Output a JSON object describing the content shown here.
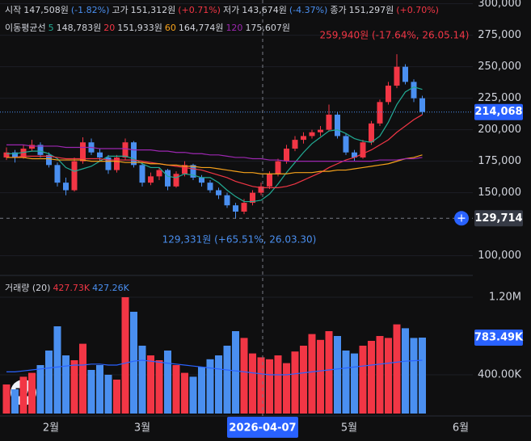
{
  "header": {
    "items": [
      {
        "label": "시작",
        "value": "147,508원",
        "pct": "(-1.82%)"
      },
      {
        "label": "고가",
        "value": "151,312원",
        "pct": "(+0.71%)"
      },
      {
        "label": "저가",
        "value": "143,674원",
        "pct": "(-4.37%)"
      },
      {
        "label": "종가",
        "value": "151,297원",
        "pct": "(+0.70%)"
      }
    ]
  },
  "ma_legend": {
    "label": "이동평균선",
    "items": [
      {
        "period": "5",
        "value": "148,783원",
        "color": "#22ab94"
      },
      {
        "period": "20",
        "value": "151,933원",
        "color": "#f23645"
      },
      {
        "period": "60",
        "value": "164,774원",
        "color": "#f7a21b"
      },
      {
        "period": "120",
        "value": "175,607원",
        "color": "#9c27b0"
      }
    ]
  },
  "x_axis": {
    "labels": [
      "2월",
      "3월",
      "5월",
      "6월"
    ],
    "crosshair_date": "2026-04-07"
  },
  "chart_data": [
    {
      "type": "candlestick",
      "up_color": "#f23645",
      "down_color": "#4a8ff0",
      "open": [
        178000,
        182000,
        178000,
        185000,
        188000,
        180000,
        172000,
        158000,
        152000,
        175000,
        190000,
        182000,
        178000,
        168000,
        178000,
        190000,
        172000,
        158000,
        163000,
        168000,
        155000,
        165000,
        172000,
        162000,
        158000,
        152000,
        148000,
        140000,
        135000,
        142000,
        150000,
        155000,
        165000,
        175000,
        185000,
        192000,
        195000,
        198000,
        200000,
        212000,
        195000,
        182000,
        178000,
        190000,
        205000,
        222000,
        235000,
        250000,
        238000,
        225000
      ],
      "high": [
        186000,
        184000,
        188000,
        192000,
        190000,
        182000,
        174000,
        162000,
        178000,
        194000,
        193000,
        185000,
        180000,
        180000,
        193000,
        191000,
        174000,
        166000,
        170000,
        169000,
        167000,
        175000,
        173000,
        164000,
        160000,
        154000,
        150000,
        142000,
        145000,
        152000,
        158000,
        167000,
        177000,
        188000,
        195000,
        198000,
        200000,
        203000,
        220000,
        214000,
        197000,
        184000,
        192000,
        207000,
        224000,
        238000,
        259940,
        252000,
        240000,
        227000
      ],
      "low": [
        176000,
        174000,
        177000,
        183000,
        178000,
        170000,
        155000,
        148000,
        151000,
        173000,
        180000,
        175000,
        165000,
        166000,
        176000,
        170000,
        155000,
        156000,
        160000,
        152000,
        154000,
        163000,
        160000,
        155000,
        150000,
        145000,
        138000,
        129331,
        133000,
        140000,
        148000,
        153000,
        163000,
        173000,
        183000,
        189000,
        193000,
        195000,
        199000,
        193000,
        180000,
        175000,
        177000,
        188000,
        203000,
        220000,
        233000,
        236000,
        222000,
        212000
      ],
      "close": [
        182000,
        178000,
        185000,
        188000,
        180000,
        172000,
        158000,
        152000,
        175000,
        190000,
        182000,
        178000,
        168000,
        178000,
        190000,
        172000,
        158000,
        163000,
        168000,
        155000,
        165000,
        172000,
        162000,
        158000,
        152000,
        148000,
        140000,
        135000,
        142000,
        150000,
        155000,
        165000,
        175000,
        185000,
        192000,
        195000,
        198000,
        200000,
        212000,
        195000,
        182000,
        178000,
        190000,
        205000,
        222000,
        235000,
        250000,
        238000,
        225000,
        214068
      ],
      "series": [
        {
          "name": "5",
          "color": "#22ab94",
          "values": [
            181000,
            181000,
            182000,
            183000,
            183000,
            181000,
            177000,
            170000,
            167000,
            169000,
            171000,
            175000,
            179000,
            179000,
            179000,
            177000,
            173000,
            170000,
            170000,
            163000,
            162000,
            165000,
            164000,
            162000,
            162000,
            158000,
            152000,
            147000,
            143000,
            143000,
            144000,
            149000,
            157000,
            166000,
            174000,
            182000,
            189000,
            194000,
            199000,
            200000,
            197000,
            193000,
            191000,
            190000,
            195000,
            206000,
            220000,
            230000,
            234000,
            232000
          ]
        },
        {
          "name": "20",
          "color": "#f23645",
          "values": [
            178000,
            178000,
            179000,
            179000,
            179000,
            179000,
            178000,
            177000,
            177000,
            177000,
            177000,
            177000,
            176000,
            176000,
            176000,
            176000,
            175000,
            174000,
            173000,
            172000,
            171000,
            170000,
            169000,
            168000,
            166000,
            164000,
            162000,
            159000,
            157000,
            155000,
            154000,
            154000,
            154000,
            155000,
            157000,
            160000,
            163000,
            166000,
            170000,
            173000,
            176000,
            178000,
            181000,
            184000,
            188000,
            192000,
            198000,
            203000,
            208000,
            212000
          ]
        },
        {
          "name": "60",
          "color": "#f7a21b",
          "values": [
            178000,
            178000,
            178000,
            177000,
            177000,
            177000,
            176000,
            176000,
            176000,
            176000,
            175000,
            175000,
            175000,
            175000,
            174000,
            174000,
            174000,
            173000,
            173000,
            172000,
            172000,
            171000,
            171000,
            170000,
            170000,
            169000,
            168000,
            167000,
            166000,
            166000,
            165000,
            165000,
            165000,
            165000,
            166000,
            166000,
            166000,
            167000,
            167000,
            168000,
            168000,
            169000,
            170000,
            171000,
            172000,
            173000,
            175000,
            177000,
            178000,
            180000
          ]
        },
        {
          "name": "120",
          "color": "#9c27b0",
          "values": [
            188000,
            188000,
            188000,
            187000,
            187000,
            187000,
            187000,
            186000,
            186000,
            186000,
            186000,
            185000,
            185000,
            185000,
            185000,
            184000,
            184000,
            184000,
            183000,
            183000,
            182000,
            182000,
            181000,
            181000,
            180000,
            180000,
            179000,
            178000,
            178000,
            177000,
            177000,
            176000,
            176000,
            175000,
            175000,
            175000,
            175000,
            175000,
            175000,
            175000,
            175000,
            175000,
            175000,
            175000,
            176000,
            176000,
            176000,
            177000,
            177000,
            178000
          ]
        }
      ],
      "ylim": [
        85000,
        303000
      ],
      "yticks": [
        {
          "value": 300000,
          "label": "300,000"
        },
        {
          "value": 275000,
          "label": "275,000"
        },
        {
          "value": 250000,
          "label": "250,000"
        },
        {
          "value": 225000,
          "label": "225,000"
        },
        {
          "value": 200000,
          "label": "200,000"
        },
        {
          "value": 175000,
          "label": "175,000"
        },
        {
          "value": 150000,
          "label": "150,000"
        },
        {
          "value": 100000,
          "label": "100,000"
        }
      ],
      "current": {
        "value": 214068,
        "label": "214,068"
      },
      "crosshair": {
        "value": 129714,
        "label": "129,714"
      },
      "annotations": [
        {
          "text": "259,940원 (-17.64%, 26.05.14)",
          "color": "#f23645"
        },
        {
          "text": "129,331원 (+65.51%, 26.03.30)",
          "color": "#4a8ff0"
        }
      ]
    },
    {
      "type": "bar",
      "title": "거래량 (20)",
      "legend_values": [
        {
          "text": "427.73K",
          "color": "#f23645"
        },
        {
          "text": "427.26K",
          "color": "#4a8ff0"
        }
      ],
      "values": [
        300000,
        250000,
        380000,
        420000,
        500000,
        650000,
        900000,
        600000,
        550000,
        720000,
        450000,
        500000,
        400000,
        350000,
        1200000,
        1050000,
        700000,
        600000,
        550000,
        650000,
        500000,
        420000,
        380000,
        480000,
        560000,
        600000,
        700000,
        850000,
        780000,
        620000,
        580000,
        560000,
        600000,
        520000,
        640000,
        700000,
        820000,
        760000,
        850000,
        800000,
        650000,
        620000,
        700000,
        750000,
        800000,
        780000,
        920000,
        880000,
        780000,
        783490
      ],
      "series": [
        {
          "name": "20",
          "color": "#2962ff",
          "values": [
            430000,
            430000,
            440000,
            450000,
            460000,
            470000,
            480000,
            490000,
            500000,
            500000,
            510000,
            510000,
            500000,
            500000,
            520000,
            540000,
            550000,
            540000,
            530000,
            520000,
            510000,
            500000,
            490000,
            480000,
            470000,
            460000,
            450000,
            440000,
            430000,
            420000,
            410000,
            400000,
            400000,
            400000,
            410000,
            420000,
            430000,
            440000,
            450000,
            460000,
            470000,
            480000,
            490000,
            500000,
            510000,
            520000,
            530000,
            540000,
            545000,
            550000
          ]
        }
      ],
      "ylim": [
        0,
        1400000
      ],
      "yticks": [
        {
          "value": 1200000,
          "label": "1.20M"
        },
        {
          "value": 400000,
          "label": "400.00K"
        }
      ],
      "current": {
        "value": 783490,
        "label": "783.49K"
      }
    }
  ]
}
